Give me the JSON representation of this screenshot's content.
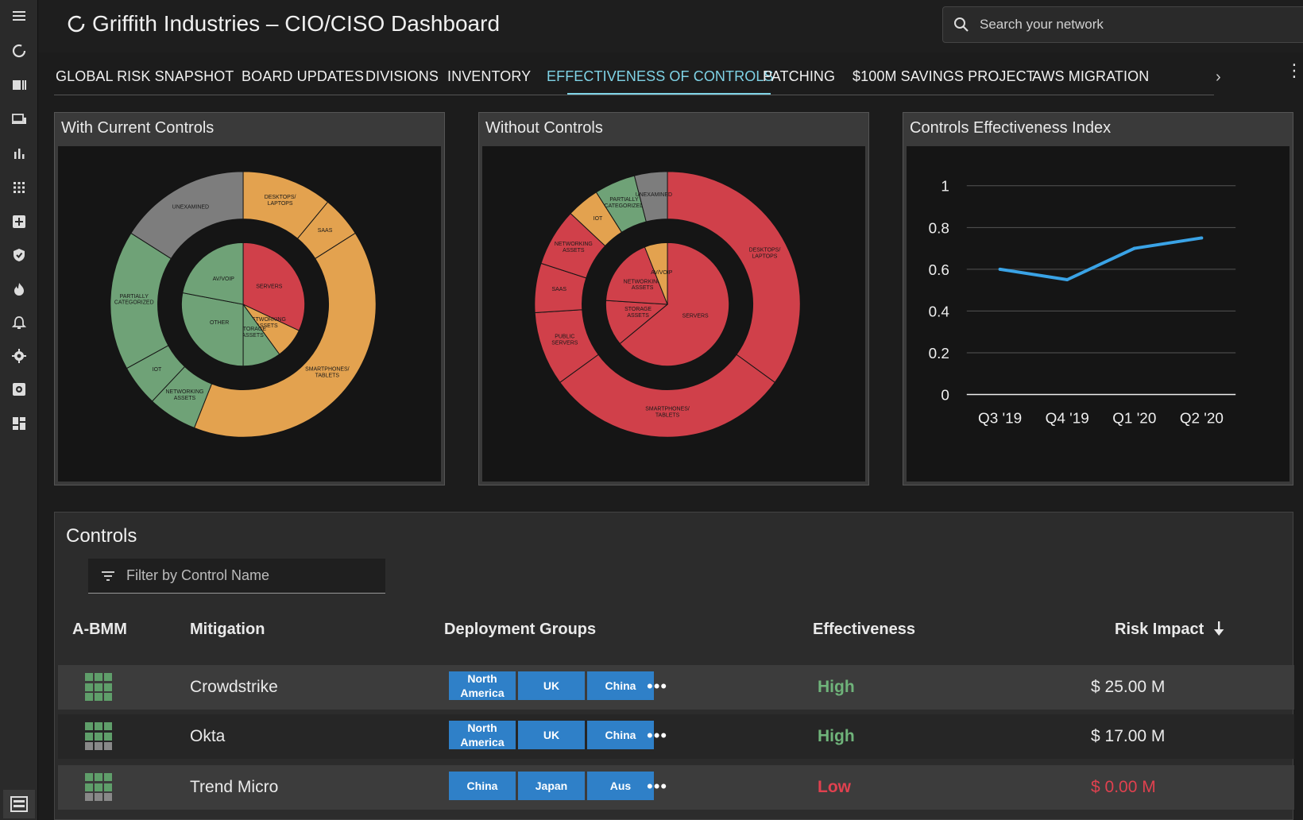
{
  "app": {
    "title": "Griffith Industries – CIO/CISO Dashboard"
  },
  "search": {
    "placeholder": "Search your network"
  },
  "sidebar": {
    "icons": [
      "menu-icon",
      "refresh-icon",
      "dashboard-icon",
      "devices-icon",
      "bar-chart-icon",
      "grid-icon",
      "add-box-icon",
      "shield-icon",
      "fire-icon",
      "bell-icon",
      "gear-icon",
      "settings-box-icon",
      "layout-icon"
    ]
  },
  "tabs": [
    {
      "label": "GLOBAL RISK SNAPSHOT"
    },
    {
      "label": "BOARD UPDATES"
    },
    {
      "label": "DIVISIONS"
    },
    {
      "label": "INVENTORY"
    },
    {
      "label": "EFFECTIVENESS OF CONTROLS",
      "active": true
    },
    {
      "label": "PATCHING"
    },
    {
      "label": "$100M SAVINGS PROJECT"
    },
    {
      "label": "AWS MIGRATION"
    }
  ],
  "tab_more": "›",
  "colors": {
    "red": "#d0404a",
    "orange": "#e3a24f",
    "green": "#6fa277",
    "gray": "#7d7d7d",
    "line": "#3aa3e6",
    "accent": "#7fd3e6"
  },
  "panels": {
    "with_current": {
      "title": "With Current Controls"
    },
    "without": {
      "title": "Without Controls"
    },
    "index": {
      "title": "Controls Effectiveness Index"
    }
  },
  "chart_data": [
    {
      "type": "pie",
      "title": "With Current Controls",
      "outer": [
        {
          "label": "DESKTOPS/ LAPTOPS",
          "value": 11,
          "color": "#e3a24f"
        },
        {
          "label": "SAAS",
          "value": 5,
          "color": "#e3a24f"
        },
        {
          "label": "SMARTPHONES/ TABLETS",
          "value": 40,
          "color": "#e3a24f"
        },
        {
          "label": "NETWORKING ASSETS",
          "value": 6,
          "color": "#6fa277"
        },
        {
          "label": "IOT",
          "value": 5,
          "color": "#6fa277"
        },
        {
          "label": "PARTIALLY CATEGORIZED",
          "value": 17,
          "color": "#6fa277"
        },
        {
          "label": "UNEXAMINED",
          "value": 16,
          "color": "#7d7d7d"
        }
      ],
      "inner": [
        {
          "label": "SERVERS",
          "value": 32,
          "color": "#d0404a"
        },
        {
          "label": "NETWORKING ASSETS",
          "value": 8,
          "color": "#e3a24f"
        },
        {
          "label": "STORAGE ASSETS",
          "value": 10,
          "color": "#6fa277"
        },
        {
          "label": "OTHER",
          "value": 28,
          "color": "#6fa277"
        },
        {
          "label": "AV/VOIP",
          "value": 22,
          "color": "#6fa277"
        }
      ]
    },
    {
      "type": "pie",
      "title": "Without Controls",
      "outer": [
        {
          "label": "DESKTOPS/ LAPTOPS",
          "value": 35,
          "color": "#d0404a"
        },
        {
          "label": "SMARTPHONES/ TABLETS",
          "value": 30,
          "color": "#d0404a"
        },
        {
          "label": "PUBLIC SERVERS",
          "value": 9,
          "color": "#d0404a"
        },
        {
          "label": "SAAS",
          "value": 6,
          "color": "#d0404a"
        },
        {
          "label": "NETWORKING ASSETS",
          "value": 7,
          "color": "#d0404a"
        },
        {
          "label": "IOT",
          "value": 4,
          "color": "#e3a24f"
        },
        {
          "label": "PARTIALLY CATEGORIZED",
          "value": 5,
          "color": "#6fa277"
        },
        {
          "label": "UNEXAMINED",
          "value": 4,
          "color": "#7d7d7d"
        }
      ],
      "inner": [
        {
          "label": "SERVERS",
          "value": 64,
          "color": "#d0404a"
        },
        {
          "label": "STORAGE ASSETS",
          "value": 12,
          "color": "#d0404a"
        },
        {
          "label": "NETWORKING ASSETS",
          "value": 18,
          "color": "#d0404a"
        },
        {
          "label": "AV/VOIP",
          "value": 6,
          "color": "#e3a24f"
        }
      ]
    },
    {
      "type": "line",
      "title": "Controls Effectiveness Index",
      "categories": [
        "Q3 '19",
        "Q4 '19",
        "Q1 '20",
        "Q2 '20"
      ],
      "series": [
        {
          "values": [
            0.6,
            0.55,
            0.7,
            0.75
          ]
        }
      ],
      "ylim": [
        0,
        1
      ],
      "yticks": [
        "0",
        "0.2",
        "0.4",
        "0.6",
        "0.8",
        "1"
      ],
      "grid": true
    }
  ],
  "controls": {
    "title": "Controls",
    "filter_placeholder": "Filter by Control Name",
    "columns": {
      "abmm": "A-BMM",
      "mitigation": "Mitigation",
      "groups": "Deployment Groups",
      "effectiveness": "Effectiveness",
      "risk": "Risk Impact"
    },
    "sort_icon": "arrow-down-icon",
    "more": "•••",
    "rows": [
      {
        "abmm_level": 9,
        "name": "Crowdstrike",
        "groups": [
          "North America",
          "UK",
          "China"
        ],
        "effectiveness": "High",
        "risk": "$ 25.00 M"
      },
      {
        "abmm_level": 5,
        "name": "Okta",
        "groups": [
          "North America",
          "UK",
          "China"
        ],
        "effectiveness": "High",
        "risk": "$ 17.00 M"
      },
      {
        "abmm_level": 5,
        "name": "Trend Micro",
        "groups": [
          "China",
          "Japan",
          "Aus"
        ],
        "effectiveness": "Low",
        "risk": "$  0.00 M"
      }
    ]
  }
}
